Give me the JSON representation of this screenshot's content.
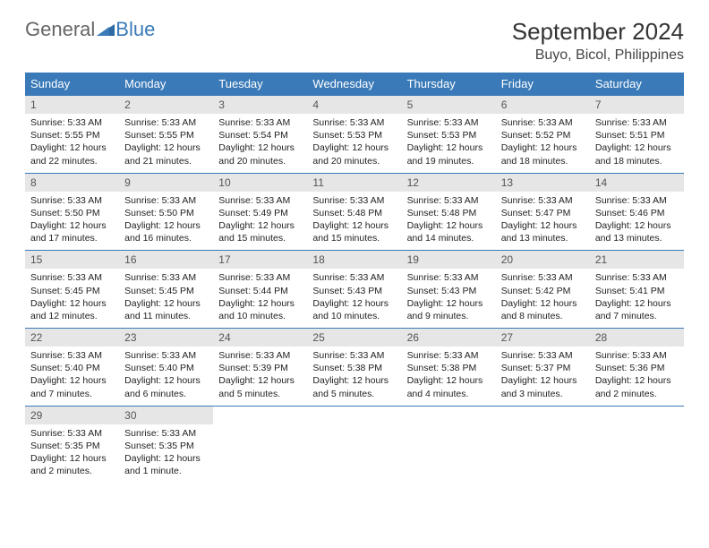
{
  "brand": {
    "part1": "General",
    "part2": "Blue"
  },
  "title": "September 2024",
  "location": "Buyo, Bicol, Philippines",
  "colors": {
    "header_bg": "#3a7ab8",
    "header_text": "#ffffff",
    "daynum_bg": "#e6e6e6",
    "body_text": "#222222",
    "page_bg": "#ffffff"
  },
  "weekdays": [
    "Sunday",
    "Monday",
    "Tuesday",
    "Wednesday",
    "Thursday",
    "Friday",
    "Saturday"
  ],
  "layout": {
    "rows": 5,
    "cols": 7,
    "cell_font_size_pt": 10.5
  },
  "days": [
    {
      "n": "1",
      "sunrise": "Sunrise: 5:33 AM",
      "sunset": "Sunset: 5:55 PM",
      "d1": "Daylight: 12 hours",
      "d2": "and 22 minutes."
    },
    {
      "n": "2",
      "sunrise": "Sunrise: 5:33 AM",
      "sunset": "Sunset: 5:55 PM",
      "d1": "Daylight: 12 hours",
      "d2": "and 21 minutes."
    },
    {
      "n": "3",
      "sunrise": "Sunrise: 5:33 AM",
      "sunset": "Sunset: 5:54 PM",
      "d1": "Daylight: 12 hours",
      "d2": "and 20 minutes."
    },
    {
      "n": "4",
      "sunrise": "Sunrise: 5:33 AM",
      "sunset": "Sunset: 5:53 PM",
      "d1": "Daylight: 12 hours",
      "d2": "and 20 minutes."
    },
    {
      "n": "5",
      "sunrise": "Sunrise: 5:33 AM",
      "sunset": "Sunset: 5:53 PM",
      "d1": "Daylight: 12 hours",
      "d2": "and 19 minutes."
    },
    {
      "n": "6",
      "sunrise": "Sunrise: 5:33 AM",
      "sunset": "Sunset: 5:52 PM",
      "d1": "Daylight: 12 hours",
      "d2": "and 18 minutes."
    },
    {
      "n": "7",
      "sunrise": "Sunrise: 5:33 AM",
      "sunset": "Sunset: 5:51 PM",
      "d1": "Daylight: 12 hours",
      "d2": "and 18 minutes."
    },
    {
      "n": "8",
      "sunrise": "Sunrise: 5:33 AM",
      "sunset": "Sunset: 5:50 PM",
      "d1": "Daylight: 12 hours",
      "d2": "and 17 minutes."
    },
    {
      "n": "9",
      "sunrise": "Sunrise: 5:33 AM",
      "sunset": "Sunset: 5:50 PM",
      "d1": "Daylight: 12 hours",
      "d2": "and 16 minutes."
    },
    {
      "n": "10",
      "sunrise": "Sunrise: 5:33 AM",
      "sunset": "Sunset: 5:49 PM",
      "d1": "Daylight: 12 hours",
      "d2": "and 15 minutes."
    },
    {
      "n": "11",
      "sunrise": "Sunrise: 5:33 AM",
      "sunset": "Sunset: 5:48 PM",
      "d1": "Daylight: 12 hours",
      "d2": "and 15 minutes."
    },
    {
      "n": "12",
      "sunrise": "Sunrise: 5:33 AM",
      "sunset": "Sunset: 5:48 PM",
      "d1": "Daylight: 12 hours",
      "d2": "and 14 minutes."
    },
    {
      "n": "13",
      "sunrise": "Sunrise: 5:33 AM",
      "sunset": "Sunset: 5:47 PM",
      "d1": "Daylight: 12 hours",
      "d2": "and 13 minutes."
    },
    {
      "n": "14",
      "sunrise": "Sunrise: 5:33 AM",
      "sunset": "Sunset: 5:46 PM",
      "d1": "Daylight: 12 hours",
      "d2": "and 13 minutes."
    },
    {
      "n": "15",
      "sunrise": "Sunrise: 5:33 AM",
      "sunset": "Sunset: 5:45 PM",
      "d1": "Daylight: 12 hours",
      "d2": "and 12 minutes."
    },
    {
      "n": "16",
      "sunrise": "Sunrise: 5:33 AM",
      "sunset": "Sunset: 5:45 PM",
      "d1": "Daylight: 12 hours",
      "d2": "and 11 minutes."
    },
    {
      "n": "17",
      "sunrise": "Sunrise: 5:33 AM",
      "sunset": "Sunset: 5:44 PM",
      "d1": "Daylight: 12 hours",
      "d2": "and 10 minutes."
    },
    {
      "n": "18",
      "sunrise": "Sunrise: 5:33 AM",
      "sunset": "Sunset: 5:43 PM",
      "d1": "Daylight: 12 hours",
      "d2": "and 10 minutes."
    },
    {
      "n": "19",
      "sunrise": "Sunrise: 5:33 AM",
      "sunset": "Sunset: 5:43 PM",
      "d1": "Daylight: 12 hours",
      "d2": "and 9 minutes."
    },
    {
      "n": "20",
      "sunrise": "Sunrise: 5:33 AM",
      "sunset": "Sunset: 5:42 PM",
      "d1": "Daylight: 12 hours",
      "d2": "and 8 minutes."
    },
    {
      "n": "21",
      "sunrise": "Sunrise: 5:33 AM",
      "sunset": "Sunset: 5:41 PM",
      "d1": "Daylight: 12 hours",
      "d2": "and 7 minutes."
    },
    {
      "n": "22",
      "sunrise": "Sunrise: 5:33 AM",
      "sunset": "Sunset: 5:40 PM",
      "d1": "Daylight: 12 hours",
      "d2": "and 7 minutes."
    },
    {
      "n": "23",
      "sunrise": "Sunrise: 5:33 AM",
      "sunset": "Sunset: 5:40 PM",
      "d1": "Daylight: 12 hours",
      "d2": "and 6 minutes."
    },
    {
      "n": "24",
      "sunrise": "Sunrise: 5:33 AM",
      "sunset": "Sunset: 5:39 PM",
      "d1": "Daylight: 12 hours",
      "d2": "and 5 minutes."
    },
    {
      "n": "25",
      "sunrise": "Sunrise: 5:33 AM",
      "sunset": "Sunset: 5:38 PM",
      "d1": "Daylight: 12 hours",
      "d2": "and 5 minutes."
    },
    {
      "n": "26",
      "sunrise": "Sunrise: 5:33 AM",
      "sunset": "Sunset: 5:38 PM",
      "d1": "Daylight: 12 hours",
      "d2": "and 4 minutes."
    },
    {
      "n": "27",
      "sunrise": "Sunrise: 5:33 AM",
      "sunset": "Sunset: 5:37 PM",
      "d1": "Daylight: 12 hours",
      "d2": "and 3 minutes."
    },
    {
      "n": "28",
      "sunrise": "Sunrise: 5:33 AM",
      "sunset": "Sunset: 5:36 PM",
      "d1": "Daylight: 12 hours",
      "d2": "and 2 minutes."
    },
    {
      "n": "29",
      "sunrise": "Sunrise: 5:33 AM",
      "sunset": "Sunset: 5:35 PM",
      "d1": "Daylight: 12 hours",
      "d2": "and 2 minutes."
    },
    {
      "n": "30",
      "sunrise": "Sunrise: 5:33 AM",
      "sunset": "Sunset: 5:35 PM",
      "d1": "Daylight: 12 hours",
      "d2": "and 1 minute."
    }
  ]
}
